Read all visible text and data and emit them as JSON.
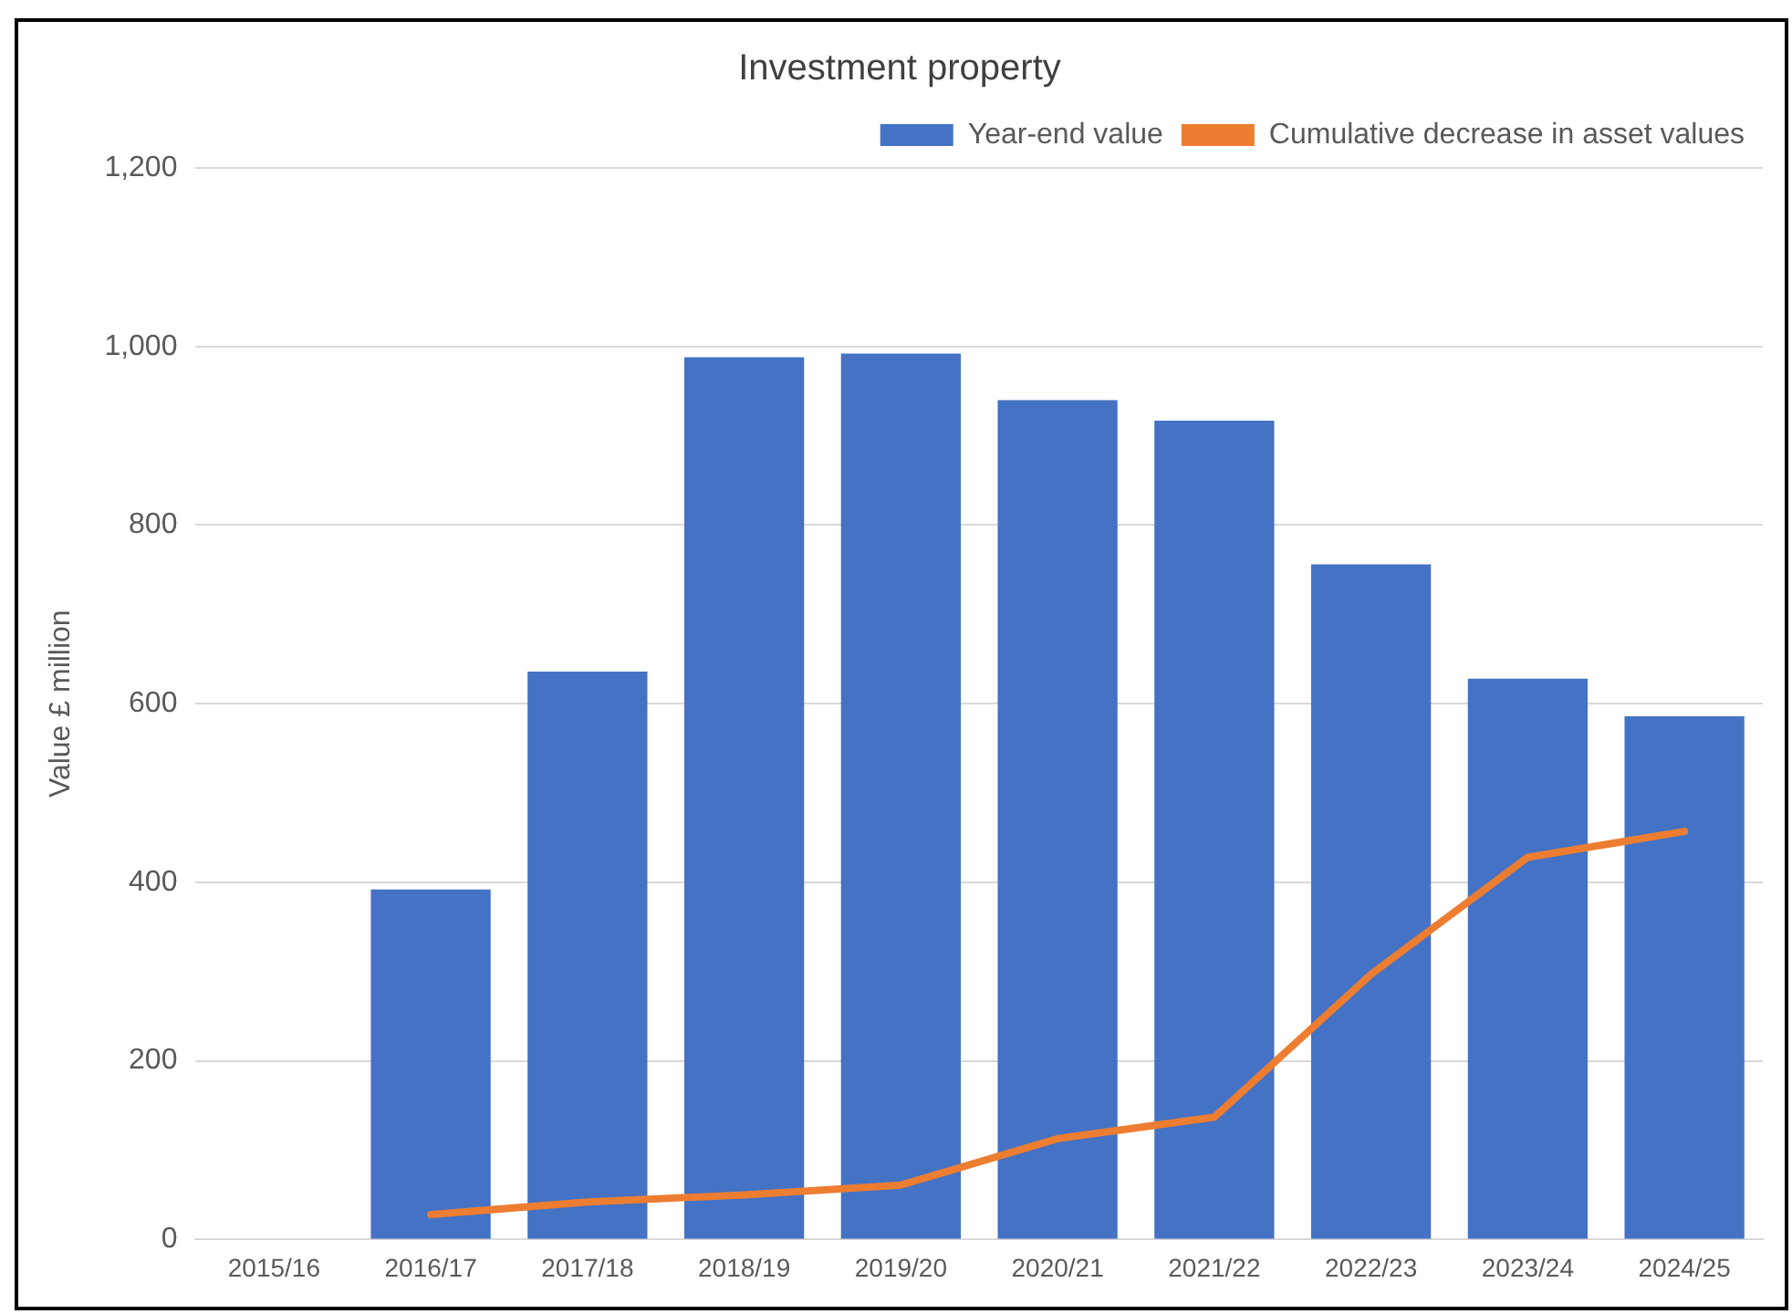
{
  "chart_data": {
    "type": "bar",
    "title": "Investment property",
    "ylabel": "Value £ million",
    "categories": [
      "2015/16",
      "2016/17",
      "2017/18",
      "2018/19",
      "2019/20",
      "2020/21",
      "2021/22",
      "2022/23",
      "2023/24",
      "2024/25"
    ],
    "series": [
      {
        "name": "Year-end value",
        "color": "#4472c4",
        "values": [
          null,
          392,
          636,
          988,
          992,
          940,
          917,
          756,
          628,
          586
        ]
      },
      {
        "name": "Cumulative decrease in asset values",
        "type": "line",
        "color": "#ed7d31",
        "values": [
          null,
          28,
          42,
          50,
          61,
          113,
          137,
          297,
          428,
          457
        ]
      }
    ],
    "ylim": [
      0,
      1200
    ],
    "yticks": [
      {
        "value": 0,
        "label": "0"
      },
      {
        "value": 200,
        "label": "200"
      },
      {
        "value": 400,
        "label": "400"
      },
      {
        "value": 600,
        "label": "600"
      },
      {
        "value": 800,
        "label": "800"
      },
      {
        "value": 1000,
        "label": "1,000"
      },
      {
        "value": 1200,
        "label": "1,200"
      }
    ],
    "grid": "y",
    "legend": "top right",
    "marker": "none",
    "line_style": "solid"
  }
}
